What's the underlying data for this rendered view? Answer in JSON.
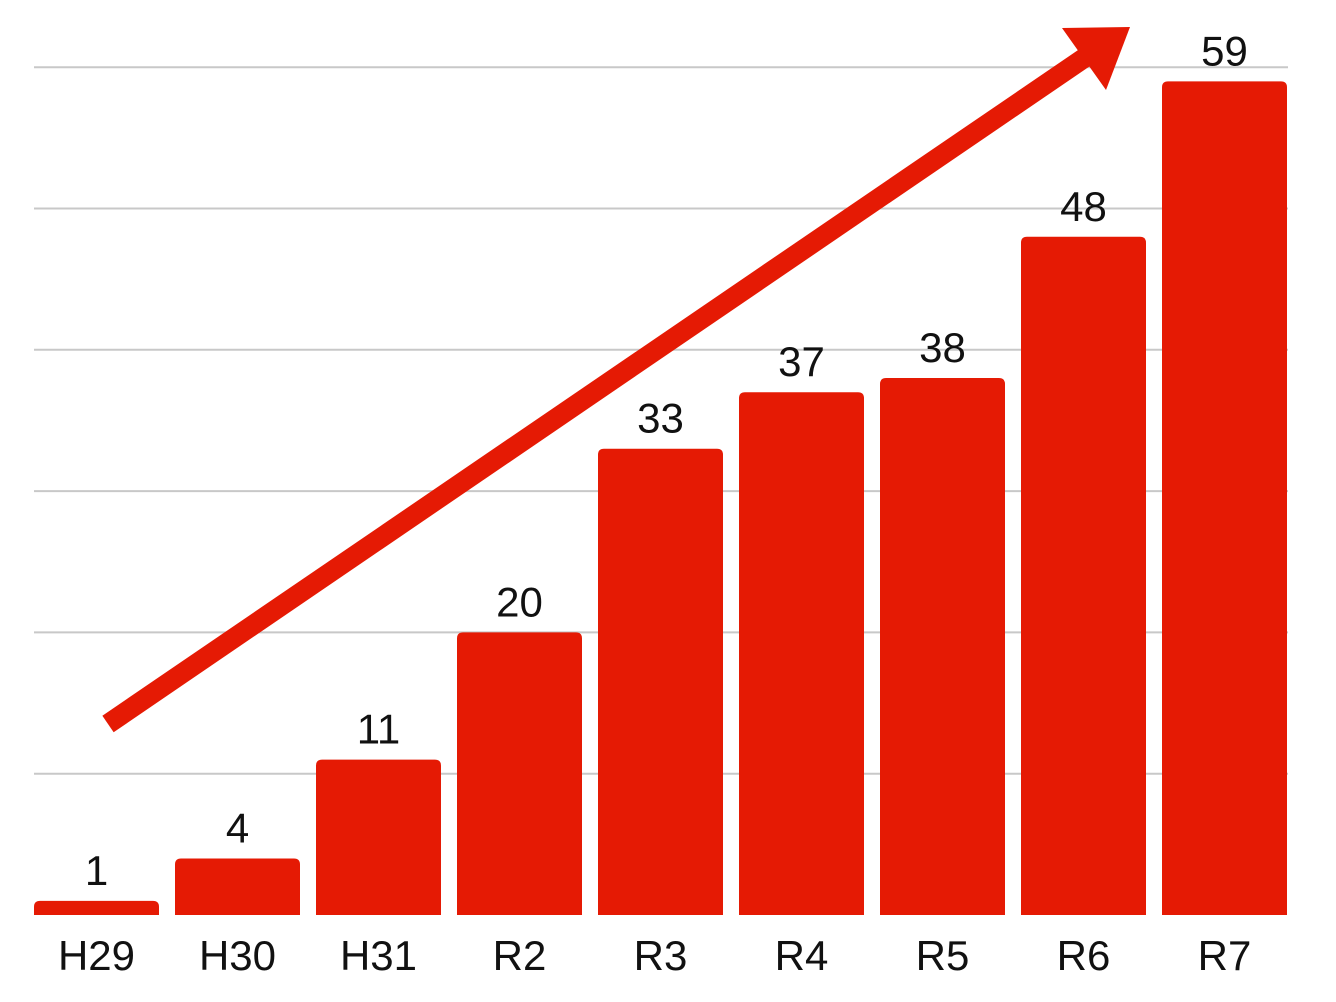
{
  "chart_data": {
    "type": "bar",
    "categories": [
      "H29",
      "H30",
      "H31",
      "R2",
      "R3",
      "R4",
      "R5",
      "R6",
      "R7"
    ],
    "values": [
      1,
      4,
      11,
      20,
      33,
      37,
      38,
      48,
      59
    ],
    "data_labels": [
      "1",
      "4",
      "11",
      "20",
      "33",
      "37",
      "38",
      "48",
      "59"
    ],
    "title": "",
    "xlabel": "",
    "ylabel": "",
    "ylim": [
      0,
      60
    ],
    "grid": true,
    "gridline_step": 10,
    "trend_arrow": true,
    "colors": {
      "bar": "#e51a04",
      "arrow": "#e51a04",
      "grid": "#c8c8c8",
      "text": "#111111"
    }
  }
}
